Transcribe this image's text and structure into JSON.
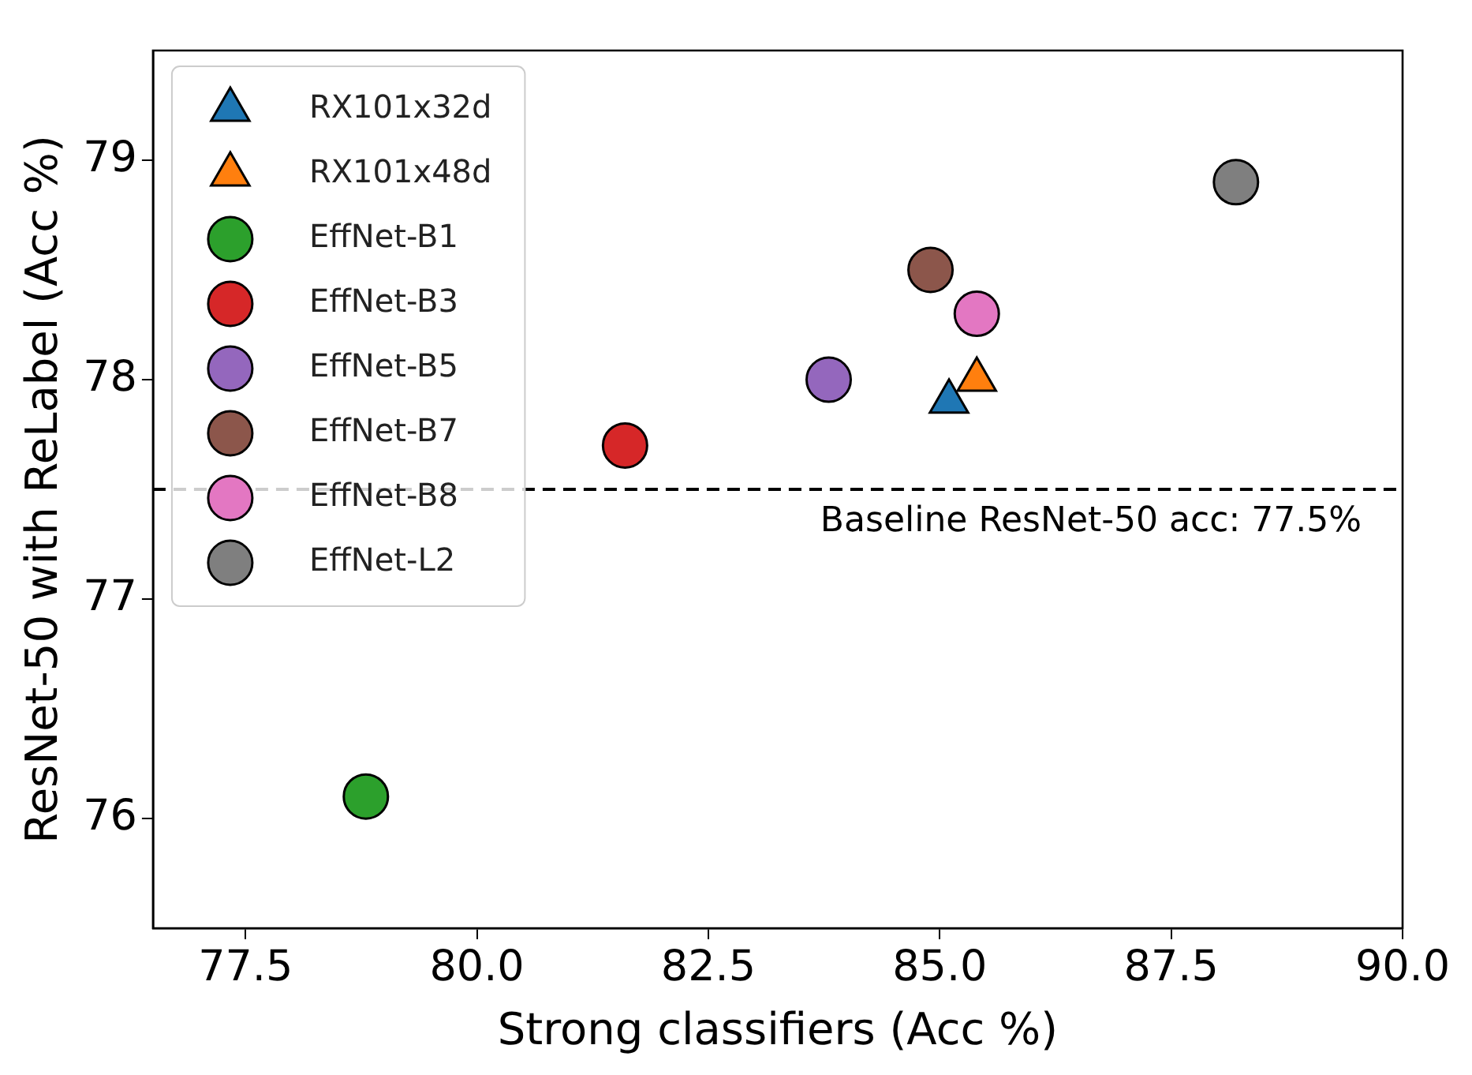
{
  "chart_data": {
    "type": "scatter",
    "xlabel": "Strong classifiers (Acc %)",
    "ylabel": "ResNet-50 with ReLabel (Acc %)",
    "xlim": [
      76.5,
      90
    ],
    "xticks": [
      {
        "value": 77.5,
        "label": "77.5"
      },
      {
        "value": 80,
        "label": "80.0"
      },
      {
        "value": 82.5,
        "label": "82.5"
      },
      {
        "value": 85,
        "label": "85.0"
      },
      {
        "value": 87.5,
        "label": "87.5"
      },
      {
        "value": 90,
        "label": "90.0"
      }
    ],
    "ylim": [
      75.5,
      79.5
    ],
    "yticks": [
      76,
      77,
      78,
      79
    ],
    "grid": false,
    "legend": "top left",
    "ref_lines": [
      {
        "axis": "y",
        "value": 77.5,
        "label": "Baseline ResNet-50 acc: 77.5%",
        "color": "#000000",
        "line_style": "dashed"
      }
    ],
    "series": [
      {
        "name": "RX101x32d",
        "color": "#1f77b4",
        "marker": "triangle",
        "x": [
          85.1
        ],
        "values": [
          77.9
        ]
      },
      {
        "name": "RX101x48d",
        "color": "#ff7f0e",
        "marker": "triangle",
        "x": [
          85.4
        ],
        "values": [
          78.0
        ]
      },
      {
        "name": "EffNet-B1",
        "color": "#2ca02c",
        "marker": "circle",
        "x": [
          78.8
        ],
        "values": [
          76.1
        ]
      },
      {
        "name": "EffNet-B3",
        "color": "#d62728",
        "marker": "circle",
        "x": [
          81.6
        ],
        "values": [
          77.7
        ]
      },
      {
        "name": "EffNet-B5",
        "color": "#9467bd",
        "marker": "circle",
        "x": [
          83.8
        ],
        "values": [
          78.0
        ]
      },
      {
        "name": "EffNet-B7",
        "color": "#8c564b",
        "marker": "circle",
        "x": [
          84.9
        ],
        "values": [
          78.5
        ]
      },
      {
        "name": "EffNet-B8",
        "color": "#e377c2",
        "marker": "circle",
        "x": [
          85.4
        ],
        "values": [
          78.3
        ]
      },
      {
        "name": "EffNet-L2",
        "color": "#7f7f7f",
        "marker": "circle",
        "x": [
          88.2
        ],
        "values": [
          78.9
        ]
      }
    ]
  }
}
